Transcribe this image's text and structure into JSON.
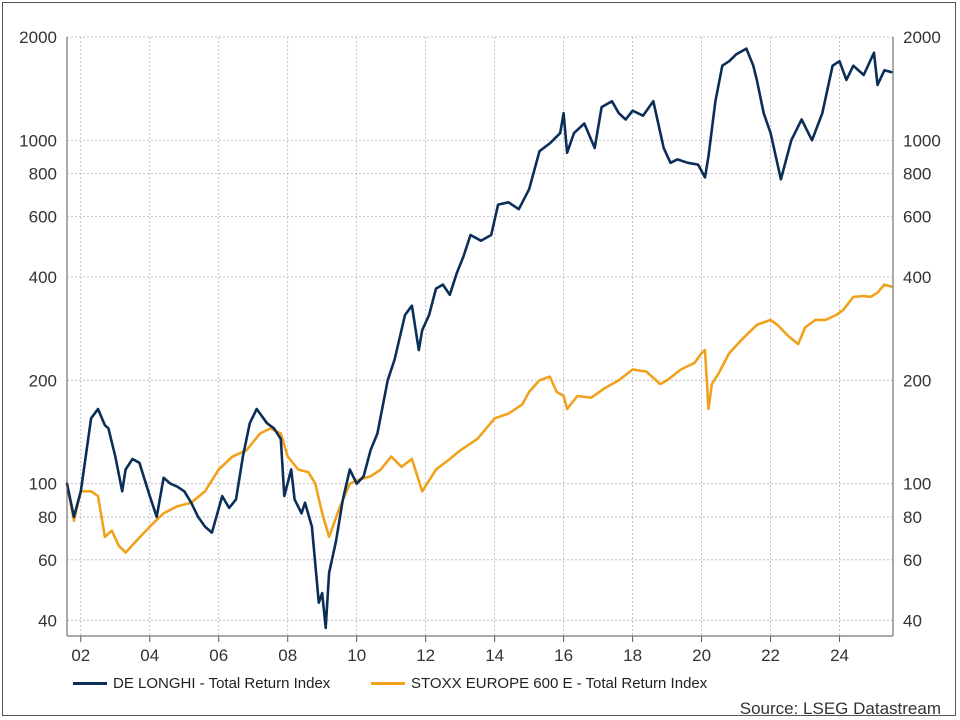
{
  "colors": {
    "delonghi": "#0b2e59",
    "stoxx": "#f0a21d",
    "grid": "#b5b5b5",
    "axis": "#555555"
  },
  "legend": {
    "series1": "DE LONGHI - Total Return Index",
    "series2": "STOXX EUROPE 600 E - Total Return Index"
  },
  "source": "Source: LSEG Datastream",
  "chart_data": {
    "type": "line",
    "log_scale": true,
    "grid": true,
    "legend_placement": "bottom-left",
    "xlim": [
      2001.6,
      2025.55
    ],
    "ylim": [
      36,
      2000
    ],
    "x_ticks": [
      2002,
      2004,
      2006,
      2008,
      2010,
      2012,
      2014,
      2016,
      2018,
      2020,
      2022,
      2024
    ],
    "x_tick_labels": [
      "02",
      "04",
      "06",
      "08",
      "10",
      "12",
      "14",
      "16",
      "18",
      "20",
      "22",
      "24"
    ],
    "y_ticks": [
      40,
      60,
      80,
      100,
      200,
      400,
      600,
      800,
      1000,
      2000
    ],
    "y_tick_labels": [
      "40",
      "60",
      "80",
      "100",
      "200",
      "400",
      "600",
      "800",
      "1000",
      "2000"
    ],
    "series": [
      {
        "name": "DE LONGHI - Total Return Index",
        "x": [
          2001.6,
          2001.8,
          2002.0,
          2002.3,
          2002.5,
          2002.7,
          2002.8,
          2003.0,
          2003.2,
          2003.3,
          2003.5,
          2003.7,
          2004.0,
          2004.2,
          2004.4,
          2004.6,
          2004.8,
          2005.0,
          2005.2,
          2005.4,
          2005.6,
          2005.8,
          2005.9,
          2006.1,
          2006.3,
          2006.5,
          2006.7,
          2006.9,
          2007.1,
          2007.4,
          2007.6,
          2007.8,
          2007.9,
          2008.1,
          2008.2,
          2008.4,
          2008.5,
          2008.7,
          2008.9,
          2009.0,
          2009.1,
          2009.2,
          2009.4,
          2009.6,
          2009.8,
          2010.0,
          2010.2,
          2010.4,
          2010.6,
          2010.9,
          2011.1,
          2011.4,
          2011.6,
          2011.8,
          2011.9,
          2012.1,
          2012.3,
          2012.5,
          2012.7,
          2012.9,
          2013.1,
          2013.3,
          2013.6,
          2013.9,
          2014.1,
          2014.4,
          2014.7,
          2015.0,
          2015.3,
          2015.6,
          2015.9,
          2016.0,
          2016.1,
          2016.3,
          2016.6,
          2016.9,
          2017.1,
          2017.4,
          2017.6,
          2017.8,
          2018.0,
          2018.3,
          2018.6,
          2018.9,
          2019.1,
          2019.3,
          2019.6,
          2019.9,
          2020.1,
          2020.2,
          2020.4,
          2020.6,
          2020.8,
          2021.0,
          2021.3,
          2021.5,
          2021.6,
          2021.8,
          2022.0,
          2022.3,
          2022.6,
          2022.9,
          2023.2,
          2023.5,
          2023.8,
          2024.0,
          2024.2,
          2024.4,
          2024.7,
          2025.0,
          2025.1,
          2025.3,
          2025.5
        ],
        "y": [
          100,
          80,
          95,
          155,
          165,
          148,
          145,
          120,
          95,
          110,
          118,
          115,
          92,
          80,
          104,
          100,
          98,
          95,
          88,
          80,
          75,
          72,
          78,
          92,
          85,
          90,
          120,
          150,
          165,
          150,
          145,
          135,
          92,
          110,
          90,
          82,
          88,
          75,
          45,
          48,
          38,
          55,
          68,
          90,
          110,
          100,
          105,
          125,
          140,
          200,
          230,
          310,
          330,
          245,
          280,
          310,
          370,
          380,
          355,
          410,
          460,
          530,
          510,
          530,
          650,
          660,
          630,
          720,
          930,
          980,
          1050,
          1200,
          920,
          1050,
          1120,
          950,
          1250,
          1300,
          1200,
          1150,
          1220,
          1180,
          1300,
          950,
          860,
          880,
          860,
          850,
          780,
          900,
          1300,
          1650,
          1700,
          1780,
          1850,
          1650,
          1500,
          1200,
          1050,
          770,
          1000,
          1150,
          1000,
          1200,
          1650,
          1700,
          1500,
          1650,
          1550,
          1800,
          1450,
          1600,
          1580
        ]
      },
      {
        "name": "STOXX EUROPE 600 E - Total Return Index",
        "x": [
          2001.6,
          2001.8,
          2002.0,
          2002.3,
          2002.5,
          2002.7,
          2002.9,
          2003.1,
          2003.3,
          2003.6,
          2004.0,
          2004.4,
          2004.8,
          2005.2,
          2005.6,
          2006.0,
          2006.4,
          2006.8,
          2007.2,
          2007.5,
          2007.8,
          2008.0,
          2008.3,
          2008.6,
          2008.8,
          2009.0,
          2009.2,
          2009.5,
          2009.8,
          2010.1,
          2010.4,
          2010.7,
          2011.0,
          2011.3,
          2011.6,
          2011.9,
          2012.3,
          2012.7,
          2013.0,
          2013.5,
          2014.0,
          2014.4,
          2014.8,
          2015.0,
          2015.3,
          2015.6,
          2015.8,
          2016.0,
          2016.1,
          2016.4,
          2016.8,
          2017.2,
          2017.6,
          2018.0,
          2018.4,
          2018.8,
          2019.0,
          2019.4,
          2019.8,
          2020.0,
          2020.1,
          2020.2,
          2020.3,
          2020.5,
          2020.8,
          2021.2,
          2021.6,
          2022.0,
          2022.2,
          2022.5,
          2022.8,
          2023.0,
          2023.3,
          2023.6,
          2023.9,
          2024.1,
          2024.4,
          2024.7,
          2024.9,
          2025.1,
          2025.3,
          2025.5
        ],
        "y": [
          100,
          78,
          95,
          95,
          92,
          70,
          73,
          66,
          63,
          68,
          75,
          82,
          86,
          88,
          95,
          110,
          120,
          125,
          140,
          145,
          140,
          120,
          110,
          108,
          100,
          82,
          70,
          85,
          100,
          103,
          105,
          110,
          120,
          112,
          118,
          95,
          110,
          118,
          125,
          135,
          155,
          160,
          170,
          185,
          200,
          205,
          185,
          180,
          165,
          180,
          178,
          190,
          200,
          215,
          212,
          195,
          200,
          215,
          225,
          240,
          245,
          165,
          195,
          210,
          240,
          265,
          290,
          300,
          290,
          270,
          255,
          285,
          300,
          300,
          310,
          320,
          350,
          352,
          350,
          360,
          380,
          375
        ]
      }
    ]
  }
}
